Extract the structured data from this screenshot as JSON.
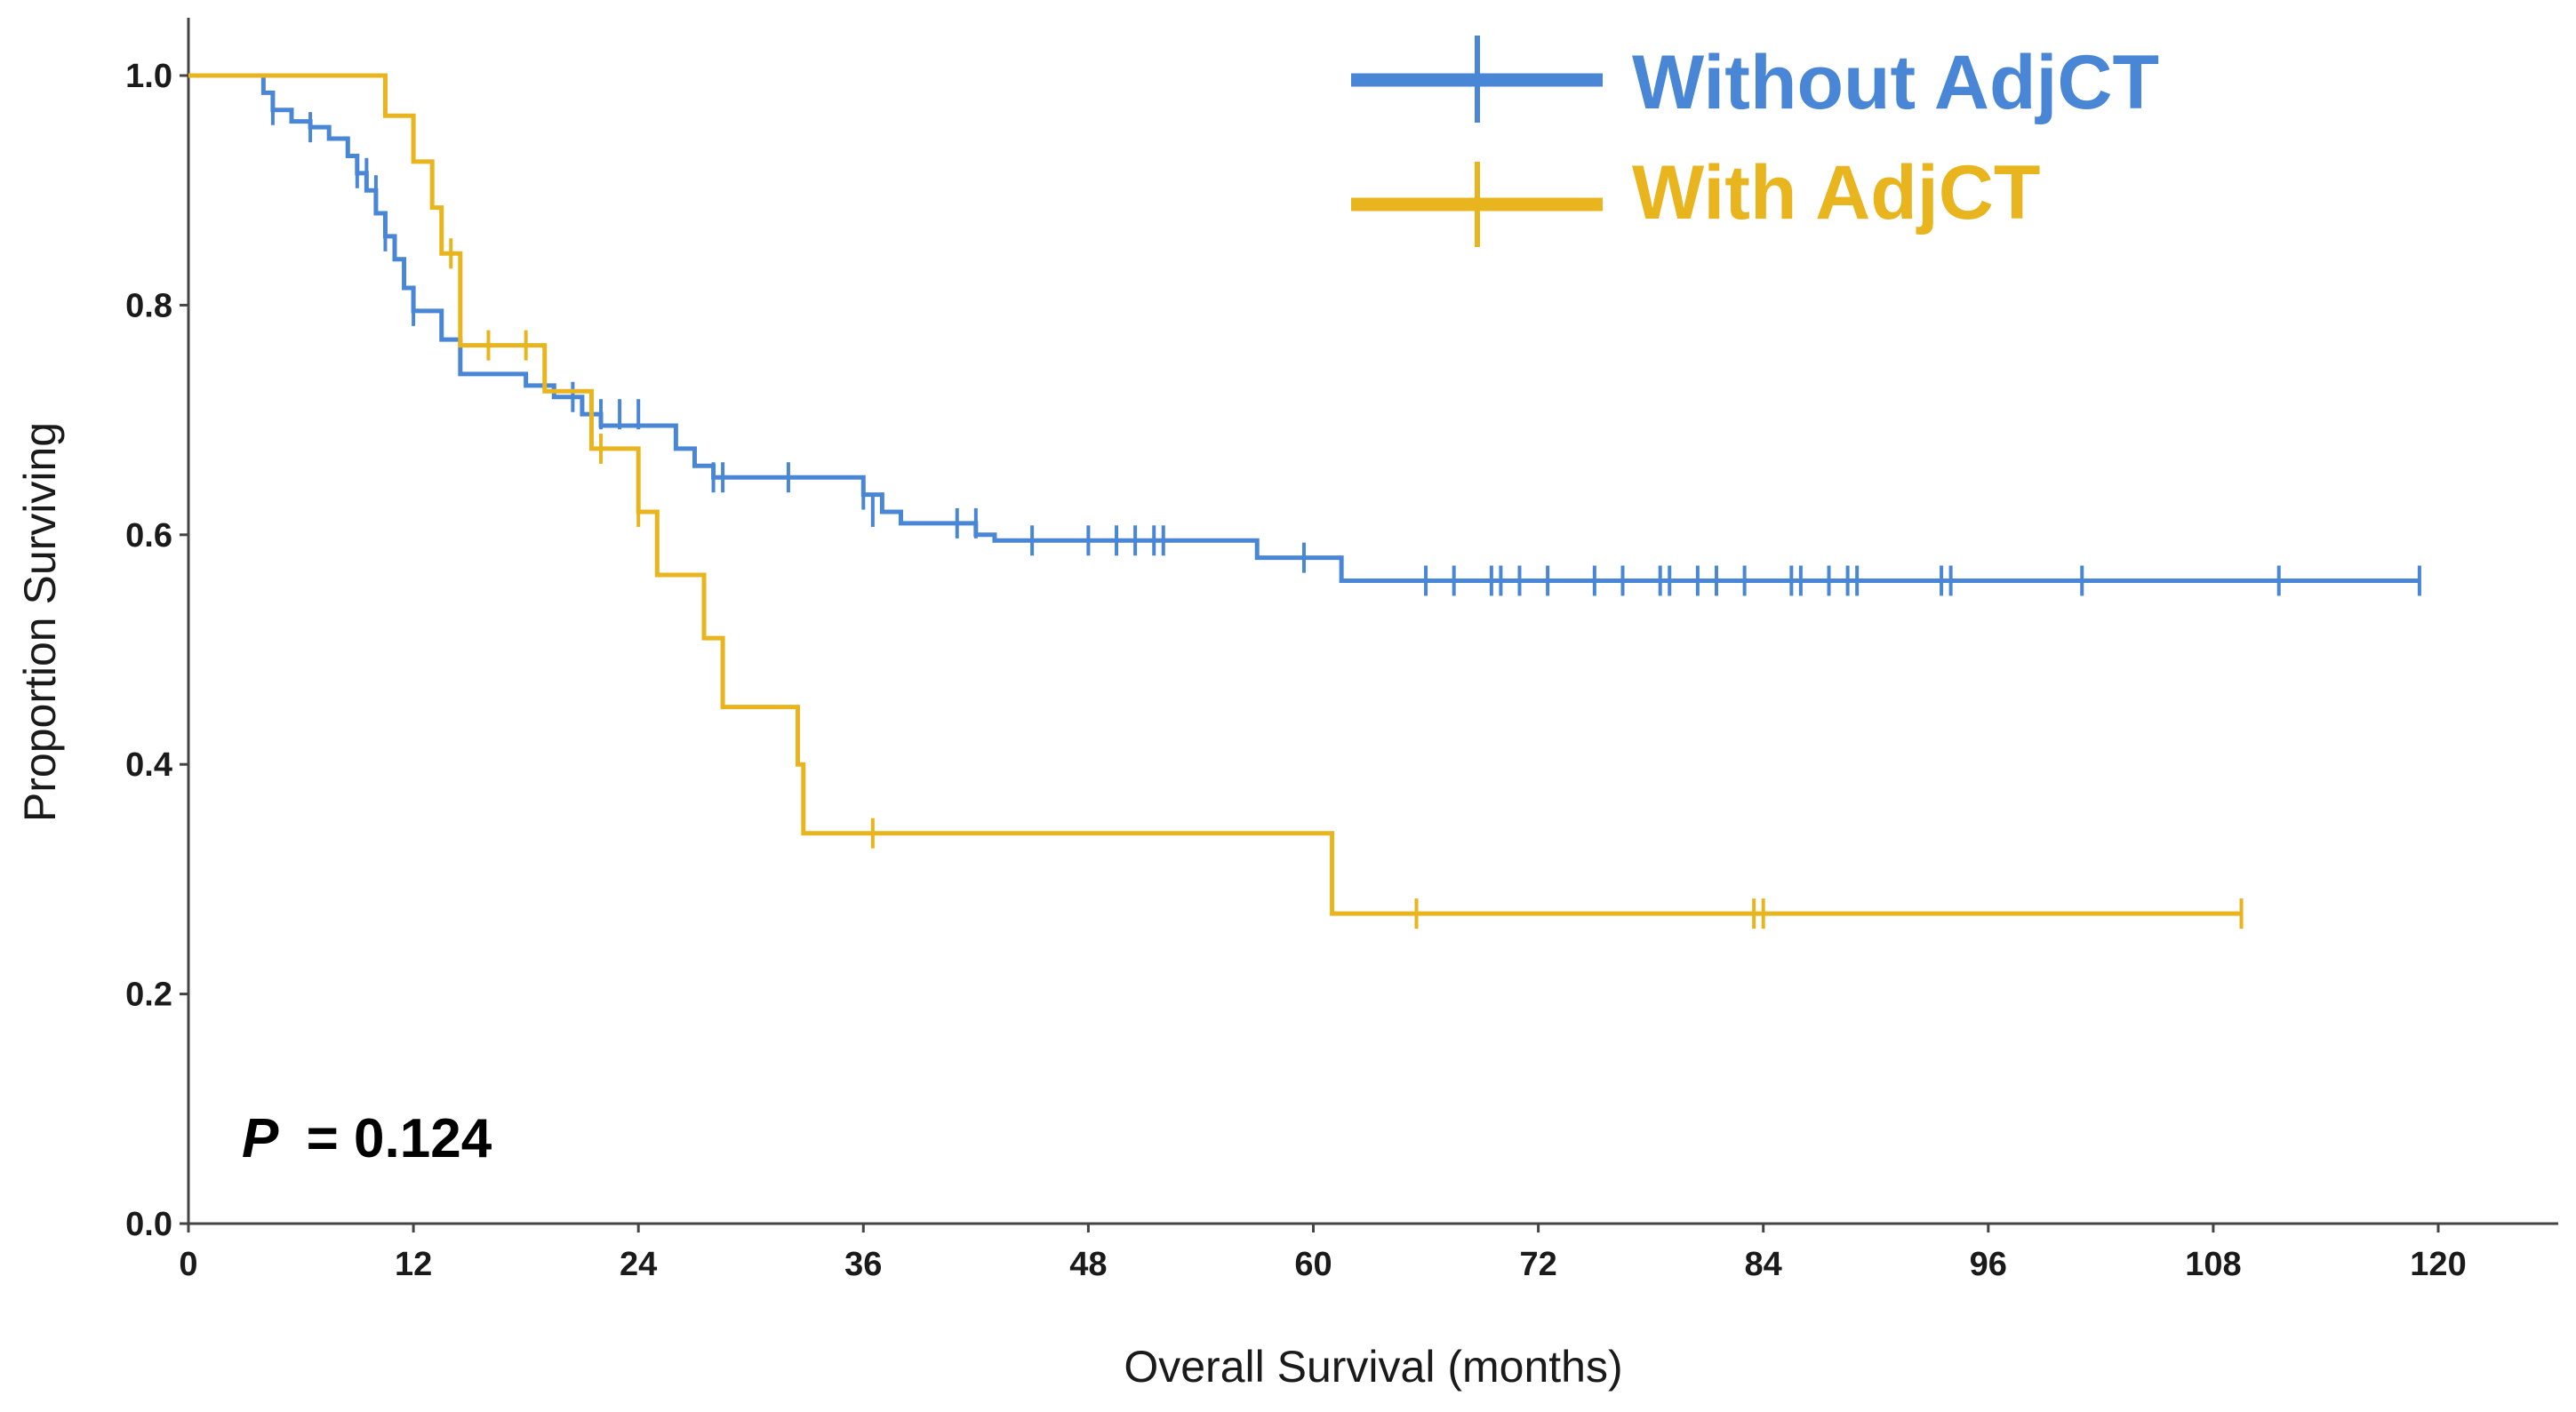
{
  "chart_data": {
    "type": "line",
    "subtype": "kaplan-meier",
    "xlabel": "Overall Survival (months)",
    "ylabel": "Proportion Surviving",
    "xlim": [
      0,
      126
    ],
    "ylim": [
      0,
      1.0
    ],
    "x_ticks": [
      0,
      12,
      24,
      36,
      48,
      60,
      72,
      84,
      96,
      108,
      120
    ],
    "y_ticks": [
      0.0,
      0.2,
      0.4,
      0.6,
      0.8,
      1.0
    ],
    "y_tick_labels": [
      "0.0",
      "0.2",
      "0.4",
      "0.6",
      "0.8",
      "1.0"
    ],
    "legend_position": "top-right",
    "annotation": {
      "p_label": "P",
      "p_value_text": "= 0.124"
    },
    "series": [
      {
        "name": "Without AdjCT",
        "color": "#4a86d6",
        "steps": [
          [
            0,
            1.0
          ],
          [
            4,
            0.985
          ],
          [
            4.5,
            0.97
          ],
          [
            5.5,
            0.96
          ],
          [
            6.5,
            0.955
          ],
          [
            7.5,
            0.945
          ],
          [
            8.5,
            0.93
          ],
          [
            9,
            0.915
          ],
          [
            9.5,
            0.9
          ],
          [
            10,
            0.88
          ],
          [
            10.5,
            0.86
          ],
          [
            11,
            0.84
          ],
          [
            11.5,
            0.815
          ],
          [
            12,
            0.795
          ],
          [
            13.5,
            0.77
          ],
          [
            14.5,
            0.74
          ],
          [
            18,
            0.73
          ],
          [
            19.5,
            0.72
          ],
          [
            21,
            0.705
          ],
          [
            22,
            0.695
          ],
          [
            26,
            0.675
          ],
          [
            27,
            0.66
          ],
          [
            28,
            0.65
          ],
          [
            36,
            0.635
          ],
          [
            37,
            0.62
          ],
          [
            38,
            0.61
          ],
          [
            42,
            0.6
          ],
          [
            43,
            0.595
          ],
          [
            57,
            0.58
          ],
          [
            61.5,
            0.56
          ]
        ],
        "x_end": 119,
        "censored": [
          [
            4.5,
            0.97
          ],
          [
            6.5,
            0.955
          ],
          [
            9,
            0.915
          ],
          [
            9.5,
            0.915
          ],
          [
            10,
            0.9
          ],
          [
            10.5,
            0.86
          ],
          [
            12,
            0.795
          ],
          [
            20.5,
            0.72
          ],
          [
            22,
            0.705
          ],
          [
            23,
            0.705
          ],
          [
            24,
            0.705
          ],
          [
            28,
            0.65
          ],
          [
            28.5,
            0.65
          ],
          [
            32,
            0.65
          ],
          [
            36,
            0.635
          ],
          [
            36.5,
            0.62
          ],
          [
            41,
            0.61
          ],
          [
            42,
            0.61
          ],
          [
            45,
            0.595
          ],
          [
            48,
            0.595
          ],
          [
            49.5,
            0.595
          ],
          [
            50.5,
            0.595
          ],
          [
            51.5,
            0.595
          ],
          [
            52,
            0.595
          ],
          [
            59.5,
            0.58
          ],
          [
            66,
            0.56
          ],
          [
            67.5,
            0.56
          ],
          [
            69.5,
            0.56
          ],
          [
            70,
            0.56
          ],
          [
            71,
            0.56
          ],
          [
            72.5,
            0.56
          ],
          [
            75,
            0.56
          ],
          [
            76.5,
            0.56
          ],
          [
            78.5,
            0.56
          ],
          [
            79,
            0.56
          ],
          [
            80.5,
            0.56
          ],
          [
            81.5,
            0.56
          ],
          [
            83,
            0.56
          ],
          [
            85.5,
            0.56
          ],
          [
            86,
            0.56
          ],
          [
            87.5,
            0.56
          ],
          [
            88.5,
            0.56
          ],
          [
            89,
            0.56
          ],
          [
            93.5,
            0.56
          ],
          [
            94,
            0.56
          ],
          [
            101,
            0.56
          ],
          [
            111.5,
            0.56
          ],
          [
            119,
            0.56
          ]
        ]
      },
      {
        "name": "With AdjCT",
        "color": "#e8b51e",
        "steps": [
          [
            0,
            1.0
          ],
          [
            10.5,
            0.965
          ],
          [
            12,
            0.925
          ],
          [
            13,
            0.885
          ],
          [
            13.5,
            0.845
          ],
          [
            14.5,
            0.765
          ],
          [
            19,
            0.725
          ],
          [
            21.5,
            0.675
          ],
          [
            24,
            0.62
          ],
          [
            25,
            0.565
          ],
          [
            27.5,
            0.51
          ],
          [
            28.5,
            0.45
          ],
          [
            32.5,
            0.4
          ],
          [
            32.8,
            0.34
          ],
          [
            61,
            0.27
          ]
        ],
        "x_end": 109.5,
        "censored": [
          [
            14,
            0.845
          ],
          [
            16,
            0.765
          ],
          [
            18,
            0.765
          ],
          [
            22,
            0.675
          ],
          [
            24,
            0.62
          ],
          [
            36.5,
            0.34
          ],
          [
            65.5,
            0.27
          ],
          [
            83.5,
            0.27
          ],
          [
            84,
            0.27
          ],
          [
            109.5,
            0.27
          ]
        ]
      }
    ]
  }
}
